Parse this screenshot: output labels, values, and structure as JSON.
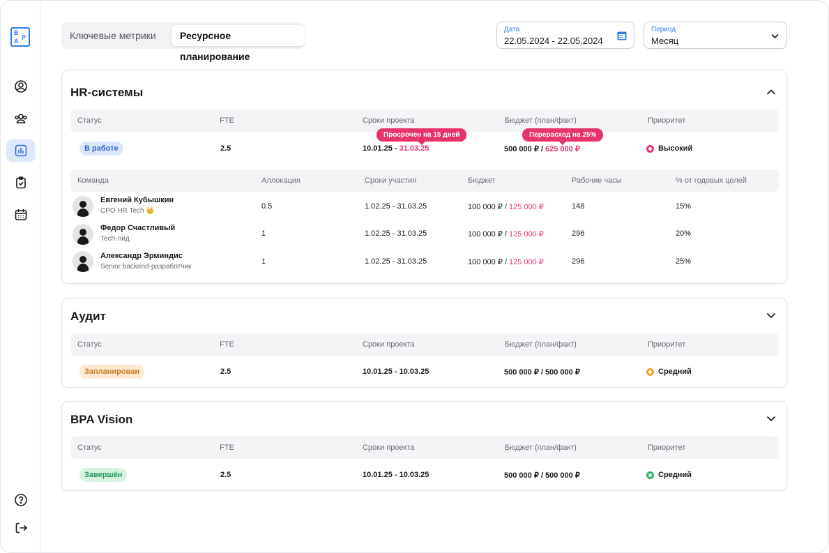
{
  "logo": {
    "letters": [
      "B",
      "P",
      "A"
    ]
  },
  "sidebar": {
    "items": [
      {
        "icon": "user-circle-icon"
      },
      {
        "icon": "users-icon"
      },
      {
        "icon": "chart-bars-icon",
        "active": true
      },
      {
        "icon": "clipboard-icon"
      },
      {
        "icon": "calendar-icon"
      }
    ],
    "bottom": [
      {
        "icon": "help-icon"
      },
      {
        "icon": "logout-icon"
      }
    ]
  },
  "tabs": [
    "Ключевые метрики",
    "Ресурсное планирование"
  ],
  "date": {
    "label": "Дата",
    "value": "22.05.2024 - 22.05.2024"
  },
  "period": {
    "label": "Период",
    "value": "Месяц"
  },
  "colors": {
    "accent": "#2f7be6",
    "danger": "#e6336a",
    "high": "#e6336a",
    "medium": "#f0a323",
    "done": "#27b35f"
  },
  "project_headers": [
    "Статус",
    "FTE",
    "Сроки проекта",
    "Бюджет (план/факт)",
    "Приоритет"
  ],
  "team_headers": [
    "Команда",
    "Аллокация",
    "Сроки участия",
    "Бюджет",
    "Рабочие часы",
    "% от годовых целей"
  ],
  "projects": [
    {
      "title": "HR-системы",
      "expanded": true,
      "status": "В работе",
      "fte": "2.5",
      "dates_plan": "10.01.25 - ",
      "dates_fact": "31.03.25",
      "dates_tooltip": "Просрочен на 15 дней",
      "budget_plan": "500 000 ₽ / ",
      "budget_fact": "625 000 ₽",
      "budget_tooltip": "Перерасход на 25%",
      "priority": "Высокий",
      "team": [
        {
          "name": "Евгений Кубышкин",
          "role": "CPO HR Tech",
          "crown": "👑",
          "allocation": "0.5",
          "dates": "1.02.25 - 31.03.25",
          "budget_plan": "100 000 ₽ / ",
          "budget_fact": "125 000 ₽",
          "hours": "148",
          "goal": "15%"
        },
        {
          "name": "Федор Счастливый",
          "role": "Tech-лид",
          "allocation": "1",
          "dates": "1.02.25 - 31.03.25",
          "budget_plan": "100 000 ₽ / ",
          "budget_fact": "125 000 ₽",
          "hours": "296",
          "goal": "20%"
        },
        {
          "name": "Александр Эрминдис",
          "role": "Senior backend-разработчик",
          "allocation": "1",
          "dates": "1.02.25 - 31.03.25",
          "budget_plan": "100 000 ₽ / ",
          "budget_fact": "125 000 ₽",
          "hours": "296",
          "goal": "25%"
        }
      ]
    },
    {
      "title": "Аудит",
      "expanded": false,
      "status": "Запланирован",
      "fte": "2.5",
      "dates": "10.01.25 - 10.03.25",
      "budget": "500 000 ₽ / 500 000 ₽",
      "priority": "Средний"
    },
    {
      "title": "BPA Vision",
      "expanded": false,
      "status": "Завершён",
      "fte": "2.5",
      "dates": "10.01.25 - 10.03.25",
      "budget": "500 000 ₽ / 500 000 ₽",
      "priority": "Средний"
    }
  ]
}
